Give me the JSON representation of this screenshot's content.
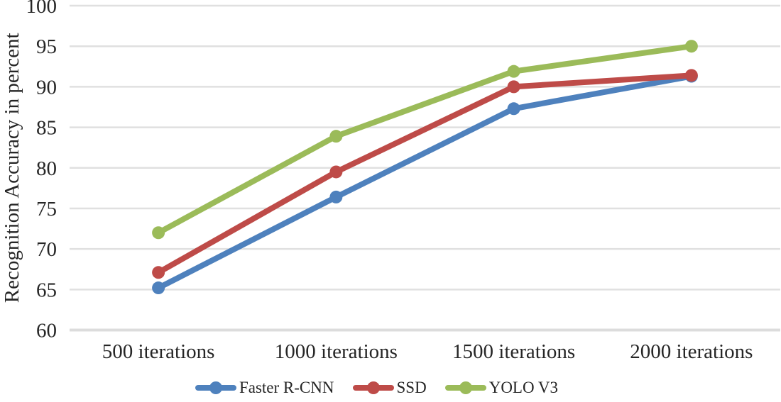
{
  "chart_data": {
    "type": "line",
    "title": "",
    "xlabel": "",
    "ylabel": "Recognition Accuracy in percent",
    "categories": [
      "500 iterations",
      "1000 iterations",
      "1500 iterations",
      "2000 iterations"
    ],
    "series": [
      {
        "name": "Faster R-CNN",
        "color": "#4E81BD",
        "values": [
          65.2,
          76.4,
          87.3,
          91.3
        ]
      },
      {
        "name": "SSD",
        "color": "#BE4B48",
        "values": [
          67.1,
          79.5,
          90.0,
          91.4
        ]
      },
      {
        "name": "YOLO V3",
        "color": "#9BBB59",
        "values": [
          72.0,
          83.9,
          91.9,
          95.0
        ]
      }
    ],
    "ylim": [
      60,
      100
    ],
    "y_ticks": [
      60,
      65,
      70,
      75,
      80,
      85,
      90,
      95,
      100
    ],
    "grid": true,
    "gridline_color": "#E0E0E0",
    "baseline_color": "#DCDCDC",
    "text_color": "#262626",
    "legend_position": "bottom"
  }
}
